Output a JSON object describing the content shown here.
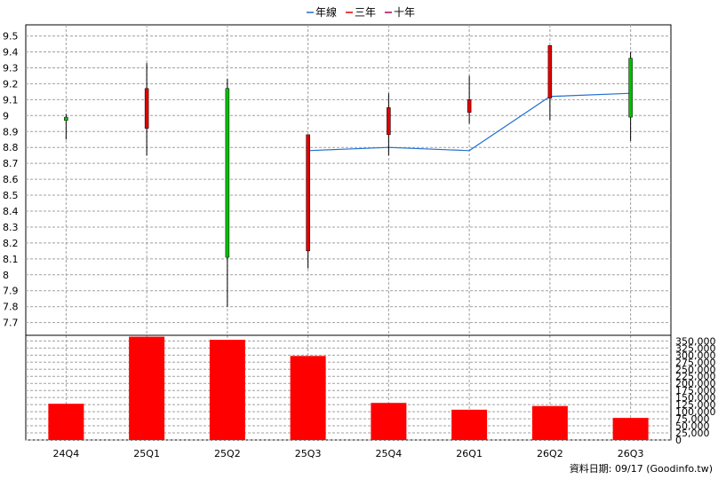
{
  "legend": [
    {
      "label": "年線",
      "color": "#1f6fd1"
    },
    {
      "label": "三年",
      "color": "#e00000"
    },
    {
      "label": "十年",
      "color": "#b00060"
    }
  ],
  "footer": {
    "date_label": "資料日期: 09/17",
    "source": "(Goodinfo.tw)"
  },
  "chart_data": [
    {
      "type": "candlestick",
      "categories": [
        "24Q4",
        "25Q1",
        "25Q2",
        "25Q3",
        "25Q4",
        "26Q1",
        "26Q2",
        "26Q3"
      ],
      "y_ticks": [
        "7.7",
        "7.8",
        "7.9",
        "8",
        "8.1",
        "8.2",
        "8.3",
        "8.4",
        "8.5",
        "8.6",
        "8.7",
        "8.8",
        "8.9",
        "9",
        "9.1",
        "9.2",
        "9.3",
        "9.4",
        "9.5"
      ],
      "ylim": [
        7.62,
        9.57
      ],
      "candles": [
        {
          "open": 8.97,
          "high": 9.01,
          "low": 8.85,
          "close": 8.99,
          "color": "#00c000"
        },
        {
          "open": 8.92,
          "high": 9.33,
          "low": 8.75,
          "close": 9.17,
          "color": "#e00000"
        },
        {
          "open": 9.17,
          "high": 9.23,
          "low": 7.8,
          "close": 8.11,
          "color": "#00c000"
        },
        {
          "open": 8.15,
          "high": 8.88,
          "low": 8.04,
          "close": 8.88,
          "color": "#e00000"
        },
        {
          "open": 8.88,
          "high": 9.14,
          "low": 8.75,
          "close": 9.05,
          "color": "#e00000"
        },
        {
          "open": 9.02,
          "high": 9.25,
          "low": 8.95,
          "close": 9.1,
          "color": "#e00000"
        },
        {
          "open": 9.11,
          "high": 9.44,
          "low": 8.97,
          "close": 9.44,
          "color": "#e00000"
        },
        {
          "open": 9.36,
          "high": 9.4,
          "low": 8.84,
          "close": 8.99,
          "color": "#00c000"
        }
      ],
      "series": [
        {
          "name": "年線",
          "values": [
            null,
            null,
            null,
            8.78,
            8.8,
            8.78,
            9.12,
            9.14
          ]
        }
      ]
    },
    {
      "type": "bar",
      "categories": [
        "24Q4",
        "25Q1",
        "25Q2",
        "25Q3",
        "25Q4",
        "26Q1",
        "26Q2",
        "26Q3"
      ],
      "values": [
        128000,
        365000,
        354000,
        297000,
        131000,
        107000,
        120000,
        78000
      ],
      "y_ticks": [
        "0",
        "25,000",
        "50,000",
        "75,000",
        "100,000",
        "125,000",
        "150,000",
        "175,000",
        "200,000",
        "225,000",
        "250,000",
        "275,000",
        "300,000",
        "325,000",
        "350,000"
      ],
      "ylim": [
        0,
        370000
      ],
      "bar_color": "#ff0000"
    }
  ]
}
